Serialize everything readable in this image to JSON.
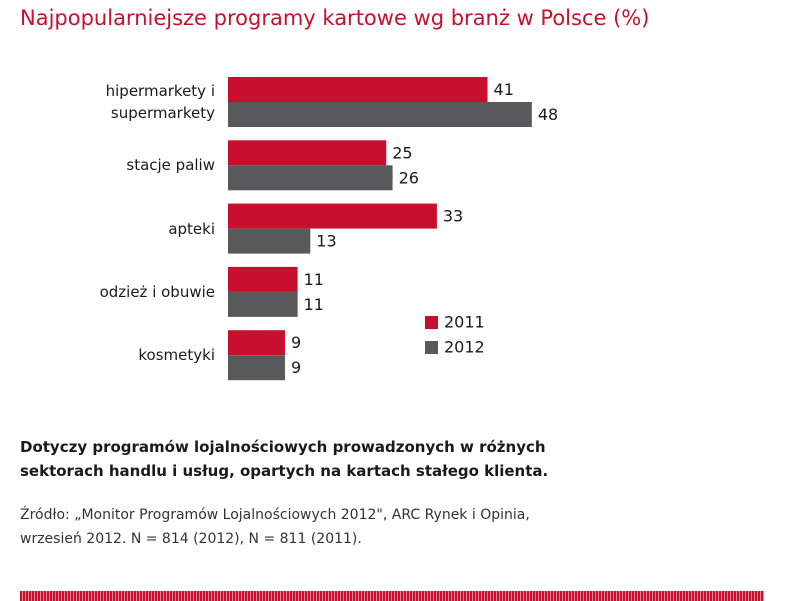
{
  "chart_data": {
    "type": "bar",
    "orientation": "horizontal",
    "title": "Najpopularniejsze programy kartowe wg branż w Polsce (%)",
    "categories": [
      "hipermarkety i supermarkety",
      "stacje paliw",
      "apteki",
      "odzież i obuwie",
      "kosmetyki"
    ],
    "series": [
      {
        "name": "2011",
        "color": "#c8102e",
        "values": [
          41,
          25,
          33,
          11,
          9
        ]
      },
      {
        "name": "2012",
        "color": "#58595b",
        "values": [
          48,
          26,
          13,
          11,
          9
        ]
      }
    ],
    "note": [
      "Dotyczy programów lojalnościowych prowadzonych w różnych",
      "sektorach handlu i usług, opartych na kartach stałego klienta."
    ],
    "source": [
      "Źródło: „Monitor Programów Lojalnościowych 2012\", ARC Rynek i Opinia,",
      "wrzesień 2012. N = 814 (2012), N = 811 (2011)."
    ]
  }
}
